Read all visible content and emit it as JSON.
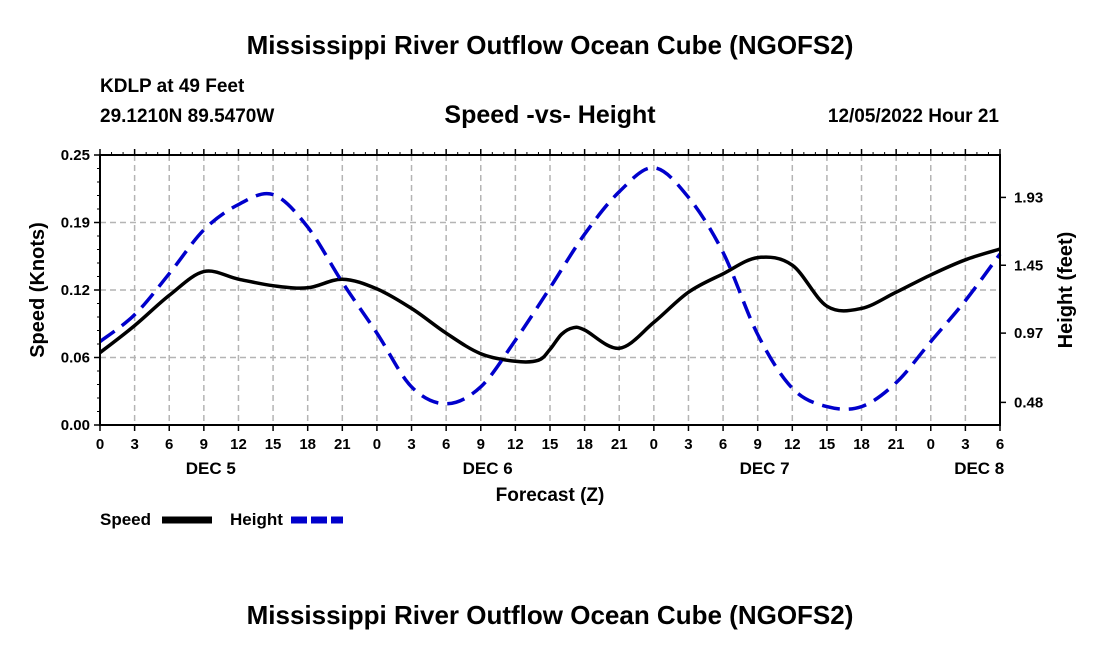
{
  "header": {
    "main_title": "Mississippi River Outflow Ocean Cube (NGOFS2)",
    "station_line": "KDLP at 49 Feet",
    "coords": "29.1210N  89.5470W",
    "subtitle": "Speed -vs- Height",
    "datetime": "12/05/2022 Hour 21"
  },
  "footer": {
    "title": "Mississippi River Outflow Ocean Cube (NGOFS2)"
  },
  "chart_data": {
    "type": "line",
    "title": "Speed -vs- Height",
    "xlabel": "Forecast (Z)",
    "ylabel": "Speed (Knots)",
    "y2label": "Height (feet)",
    "x_range_hours": [
      0,
      78
    ],
    "x_ticks": [
      {
        "h": 0,
        "label": "0"
      },
      {
        "h": 3,
        "label": "3"
      },
      {
        "h": 6,
        "label": "6"
      },
      {
        "h": 9,
        "label": "9"
      },
      {
        "h": 12,
        "label": "12"
      },
      {
        "h": 15,
        "label": "15"
      },
      {
        "h": 18,
        "label": "18"
      },
      {
        "h": 21,
        "label": "21"
      },
      {
        "h": 24,
        "label": "0"
      },
      {
        "h": 27,
        "label": "3"
      },
      {
        "h": 30,
        "label": "6"
      },
      {
        "h": 33,
        "label": "9"
      },
      {
        "h": 36,
        "label": "12"
      },
      {
        "h": 39,
        "label": "15"
      },
      {
        "h": 42,
        "label": "18"
      },
      {
        "h": 45,
        "label": "21"
      },
      {
        "h": 48,
        "label": "0"
      },
      {
        "h": 51,
        "label": "3"
      },
      {
        "h": 54,
        "label": "6"
      },
      {
        "h": 57,
        "label": "9"
      },
      {
        "h": 60,
        "label": "12"
      },
      {
        "h": 63,
        "label": "15"
      },
      {
        "h": 66,
        "label": "18"
      },
      {
        "h": 69,
        "label": "21"
      },
      {
        "h": 72,
        "label": "0"
      },
      {
        "h": 75,
        "label": "3"
      },
      {
        "h": 78,
        "label": "6"
      }
    ],
    "day_labels": [
      {
        "h": 9.6,
        "label": "DEC 5"
      },
      {
        "h": 33.6,
        "label": "DEC 6"
      },
      {
        "h": 57.6,
        "label": "DEC 7"
      },
      {
        "h": 76.2,
        "label": "DEC 8"
      }
    ],
    "y_ticks": [
      "0.00",
      "0.06",
      "0.12",
      "0.19",
      "0.25"
    ],
    "y_tick_values": [
      0,
      0.0625,
      0.125,
      0.1875,
      0.25
    ],
    "ylim": [
      0,
      0.25
    ],
    "y2_ticks": [
      "0.48",
      "0.97",
      "1.45",
      "1.93"
    ],
    "y2_tick_values": [
      0.48,
      0.97,
      1.45,
      1.93
    ],
    "y2lim": [
      0.32,
      2.23
    ],
    "grid": true,
    "series": [
      {
        "name": "Speed",
        "axis": "left",
        "color": "#000000",
        "style": "solid",
        "x": [
          0,
          3,
          6,
          9,
          12,
          15,
          18,
          21,
          24,
          27,
          30,
          33,
          36,
          38,
          39,
          40,
          41,
          42,
          45,
          48,
          51,
          54,
          57,
          60,
          63,
          66,
          69,
          72,
          75,
          78
        ],
        "y": [
          0.067,
          0.092,
          0.12,
          0.142,
          0.135,
          0.129,
          0.127,
          0.135,
          0.126,
          0.108,
          0.085,
          0.066,
          0.059,
          0.06,
          0.07,
          0.084,
          0.09,
          0.088,
          0.071,
          0.095,
          0.123,
          0.14,
          0.155,
          0.148,
          0.11,
          0.108,
          0.123,
          0.139,
          0.153,
          0.163
        ]
      },
      {
        "name": "Height",
        "axis": "right",
        "color": "#0000cc",
        "style": "dashed",
        "x": [
          0,
          3,
          6,
          9,
          12,
          15,
          18,
          21,
          24,
          27,
          30,
          33,
          36,
          39,
          42,
          45,
          48,
          51,
          54,
          57,
          60,
          63,
          66,
          69,
          72,
          75,
          78
        ],
        "y": [
          0.91,
          1.1,
          1.39,
          1.7,
          1.88,
          1.95,
          1.72,
          1.33,
          0.97,
          0.59,
          0.47,
          0.59,
          0.92,
          1.29,
          1.67,
          1.97,
          2.14,
          1.93,
          1.54,
          0.96,
          0.58,
          0.45,
          0.45,
          0.62,
          0.91,
          1.2,
          1.53
        ]
      }
    ],
    "legend": [
      {
        "label": "Speed",
        "color": "#000000",
        "style": "solid"
      },
      {
        "label": "Height",
        "color": "#0000cc",
        "style": "dashed"
      }
    ]
  }
}
